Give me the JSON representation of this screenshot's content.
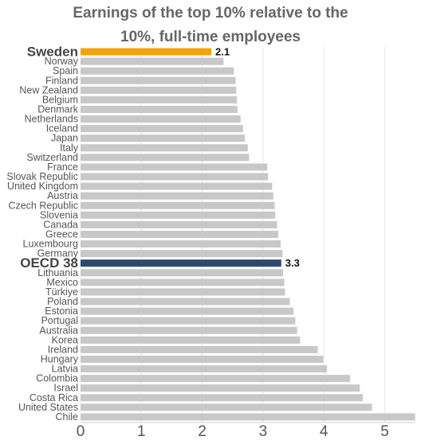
{
  "chart_data": {
    "type": "bar",
    "orientation": "horizontal",
    "title": "Earnings of the top 10% relative to the bottom 10%, full-time employees",
    "title_lines": [
      "Earnings of the top 10% relative to the",
      "10%, full-time employees"
    ],
    "xlim": [
      0,
      5.5
    ],
    "x_ticks": [
      0,
      1,
      2,
      3,
      4,
      5
    ],
    "grid": true,
    "colors": {
      "default": "#c8c8c8",
      "Sweden": "#f5a30a",
      "OECD 38": "#2e4a6b",
      "grid": "#e6e6e6",
      "label": "#555555",
      "highlight_label": "#444444",
      "value_label": "#111111"
    },
    "categories": [
      "Sweden",
      "Norway",
      "Spain",
      "Finland",
      "New Zealand",
      "Belgium",
      "Denmark",
      "Netherlands",
      "Iceland",
      "Japan",
      "Italy",
      "Switzerland",
      "France",
      "Slovak Republic",
      "United Kingdom",
      "Austria",
      "Czech Republic",
      "Slovenia",
      "Canada",
      "Greece",
      "Luxembourg",
      "Germany",
      "OECD 38",
      "Lithuania",
      "Mexico",
      "Türkiye",
      "Poland",
      "Estonia",
      "Portugal",
      "Australia",
      "Korea",
      "Ireland",
      "Hungary",
      "Latvia",
      "Colombia",
      "Israel",
      "Costa Rica",
      "United States",
      "Chile"
    ],
    "values": [
      2.15,
      2.35,
      2.52,
      2.55,
      2.56,
      2.57,
      2.58,
      2.63,
      2.67,
      2.7,
      2.75,
      2.77,
      3.07,
      3.08,
      3.15,
      3.17,
      3.19,
      3.2,
      3.23,
      3.25,
      3.29,
      3.32,
      3.3,
      3.33,
      3.35,
      3.36,
      3.44,
      3.5,
      3.53,
      3.56,
      3.61,
      3.9,
      3.99,
      4.05,
      4.43,
      4.59,
      4.64,
      4.79,
      5.6
    ],
    "highlight": [
      "Sweden",
      "OECD 38"
    ],
    "value_labels": {
      "Sweden": "2.1",
      "OECD 38": "3.3"
    }
  }
}
